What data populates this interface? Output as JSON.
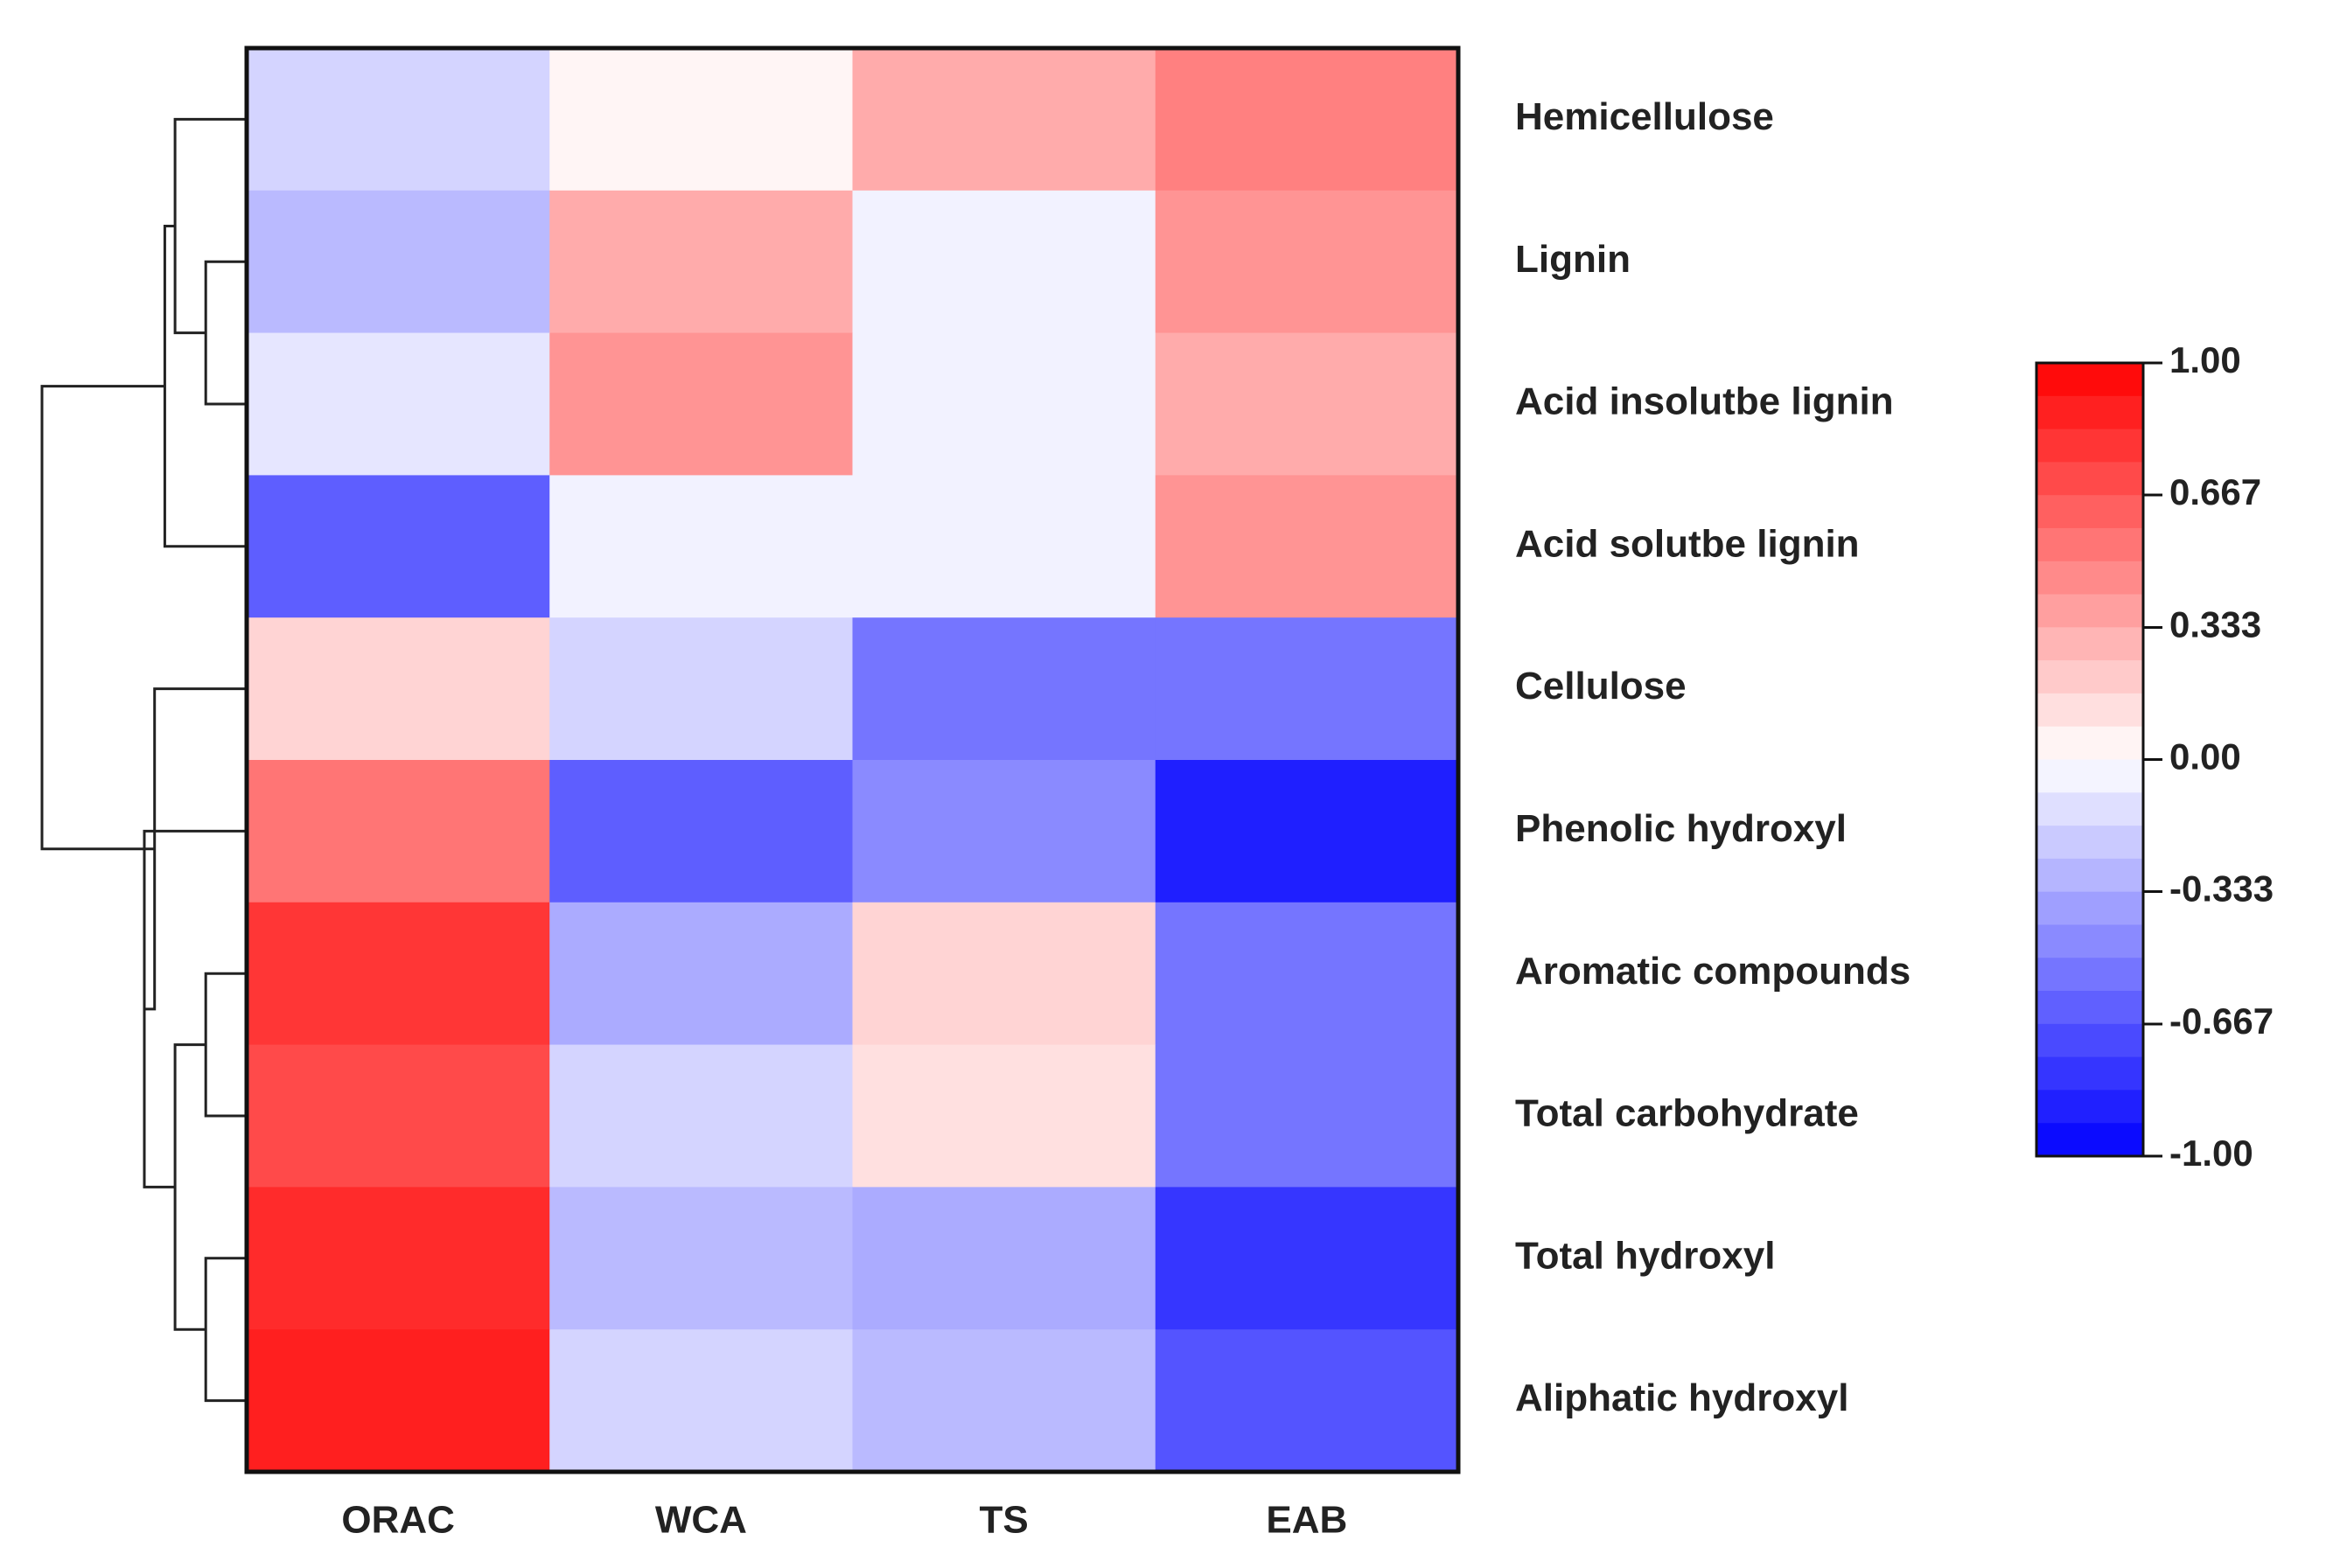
{
  "chart_data": {
    "type": "heatmap",
    "title": "",
    "xlabel": "",
    "ylabel": "",
    "columns": [
      "ORAC",
      "WCA",
      "TS",
      "EAB"
    ],
    "rows": [
      "Hemicellulose",
      "Lignin",
      "Acid insolutbe lignin",
      "Acid solutbe lignin",
      "Cellulose",
      "Phenolic hydroxyl",
      "Aromatic compounds",
      "Total carbohydrate",
      "Total hydroxyl",
      "Aliphatic hydroxyl"
    ],
    "values": [
      [
        -0.17,
        0.04,
        0.33,
        0.5
      ],
      [
        -0.27,
        0.33,
        -0.05,
        0.42
      ],
      [
        -0.1,
        0.42,
        -0.05,
        0.33
      ],
      [
        -0.63,
        -0.05,
        -0.05,
        0.42
      ],
      [
        0.17,
        -0.17,
        -0.54,
        -0.54
      ],
      [
        0.54,
        -0.63,
        -0.46,
        -0.88
      ],
      [
        0.79,
        -0.33,
        0.17,
        -0.54
      ],
      [
        0.71,
        -0.17,
        0.12,
        -0.54
      ],
      [
        0.83,
        -0.27,
        -0.33,
        -0.79
      ],
      [
        0.88,
        -0.17,
        -0.27,
        -0.67
      ]
    ],
    "value_range": [
      -1.0,
      1.0
    ],
    "colorbar": {
      "colors": {
        "low": "#0000ff",
        "mid": "#ffffff",
        "high": "#ff0000"
      },
      "ticks": [
        1.0,
        0.667,
        0.333,
        0.0,
        -0.333,
        -0.667,
        -1.0
      ],
      "tick_labels": [
        "1.00",
        "0.667",
        "0.333",
        "0.00",
        "-0.333",
        "-0.667",
        "-1.00"
      ],
      "steps": 24
    },
    "row_dendrogram": {
      "merges": [
        {
          "left": "leaf:1",
          "right": "leaf:2",
          "height": 0.2
        },
        {
          "left": "leaf:0",
          "right": "node:0",
          "height": 0.35
        },
        {
          "left": "node:1",
          "right": "leaf:3",
          "height": 0.4
        },
        {
          "left": "leaf:6",
          "right": "leaf:7",
          "height": 0.2
        },
        {
          "left": "leaf:8",
          "right": "leaf:9",
          "height": 0.2
        },
        {
          "left": "node:3",
          "right": "node:4",
          "height": 0.35
        },
        {
          "left": "leaf:5",
          "right": "node:5",
          "height": 0.5
        },
        {
          "left": "leaf:4",
          "right": "node:6",
          "height": 0.45
        },
        {
          "left": "node:2",
          "right": "node:7",
          "height": 1.0
        }
      ]
    }
  }
}
